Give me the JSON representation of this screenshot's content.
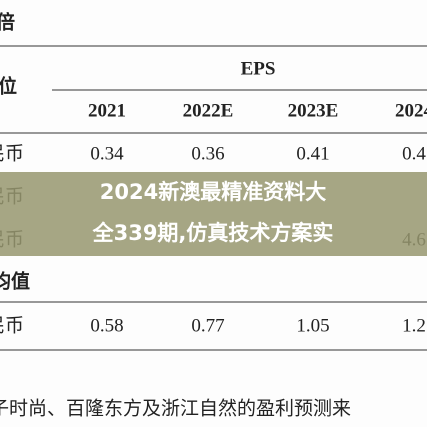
{
  "header": {
    "unit_label": "倍",
    "row_header": "位",
    "group_title": "EPS"
  },
  "table": {
    "columns": [
      "2021",
      "2022E",
      "2023E",
      "2024"
    ],
    "rows": [
      {
        "label": "民币",
        "cells": [
          "0.34",
          "0.36",
          "0.41",
          "0.4"
        ]
      },
      {
        "label": "民币",
        "cells": [
          "",
          "",
          "",
          ""
        ]
      },
      {
        "label": "民币",
        "cells": [
          "",
          "",
          "",
          "4.6"
        ]
      }
    ],
    "section": "均值",
    "section_rows": [
      {
        "label": "民币",
        "cells": [
          "0.58",
          "0.77",
          "1.05",
          "1.2"
        ]
      }
    ]
  },
  "banner": {
    "lines": [
      "2024新澳最精准资料大",
      "全339期,仿真技术方案实"
    ]
  },
  "footer": {
    "text": "子时尚、百隆东方及浙江自然的盈利预测来"
  }
}
